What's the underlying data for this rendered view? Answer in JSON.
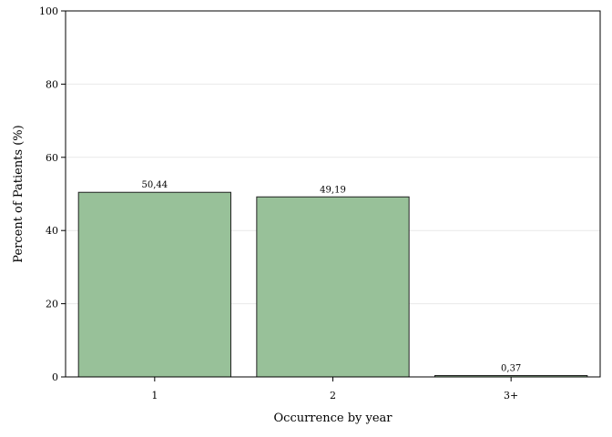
{
  "chart_data": {
    "type": "bar",
    "categories": [
      "1",
      "2",
      "3+"
    ],
    "values": [
      50.44,
      49.19,
      0.37
    ],
    "data_labels": [
      "50,44",
      "49,19",
      "0,37"
    ],
    "xlabel": "Occurrence by year",
    "ylabel": "Percent of Patients (%)",
    "ylim": [
      0,
      100
    ],
    "yticks": [
      0,
      20,
      40,
      60,
      80,
      100
    ],
    "ytick_labels": [
      "0",
      "20",
      "40",
      "60",
      "80",
      "100"
    ],
    "grid": true,
    "legend": "none",
    "colors": {
      "bar_fill": "#98c199",
      "bar_stroke": "#222222",
      "grid": "#e9e9e9"
    }
  }
}
